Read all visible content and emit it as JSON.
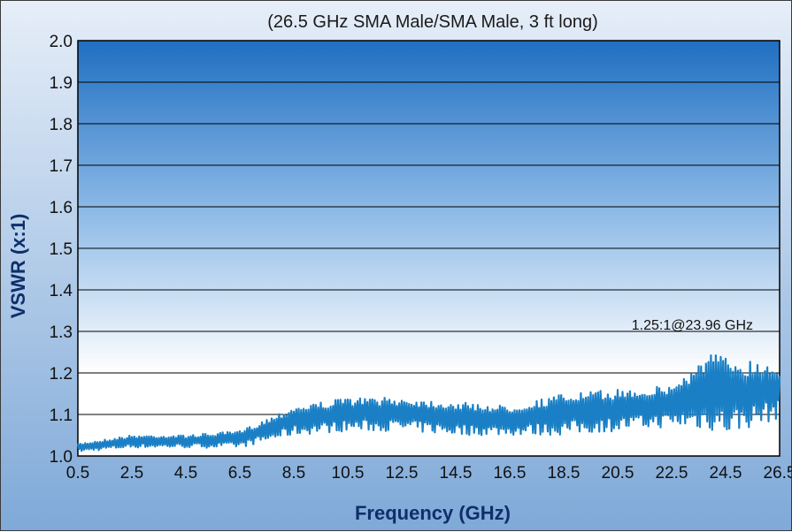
{
  "chart_data": {
    "type": "line",
    "title": "(26.5 GHz SMA Male/SMA Male, 3 ft long)",
    "xlabel": "Frequency (GHz)",
    "ylabel": "VSWR (x:1)",
    "xlim": [
      0.5,
      26.5
    ],
    "ylim": [
      1.0,
      2.0
    ],
    "xticks": [
      "0.5",
      "2.5",
      "4.5",
      "6.5",
      "8.5",
      "10.5",
      "12.5",
      "14.5",
      "16.5",
      "18.5",
      "20.5",
      "22.5",
      "24.5",
      "26.5"
    ],
    "yticks": [
      "1.0",
      "1.1",
      "1.2",
      "1.3",
      "1.4",
      "1.5",
      "1.6",
      "1.7",
      "1.8",
      "1.9",
      "2.0"
    ],
    "grid": true,
    "annotation": "1.25:1@23.96 GHz",
    "series": [
      {
        "color": "#1a7fc4",
        "envelope": {
          "x": [
            0.5,
            2.5,
            4.5,
            6.5,
            8.5,
            10.5,
            12.5,
            14.5,
            16.5,
            18.5,
            20.5,
            22.5,
            23.96,
            24.5,
            26.5
          ],
          "high": [
            1.03,
            1.05,
            1.05,
            1.06,
            1.12,
            1.14,
            1.14,
            1.13,
            1.12,
            1.15,
            1.16,
            1.17,
            1.25,
            1.24,
            1.22
          ],
          "low": [
            1.01,
            1.02,
            1.02,
            1.02,
            1.05,
            1.06,
            1.06,
            1.05,
            1.05,
            1.05,
            1.06,
            1.07,
            1.06,
            1.05,
            1.09
          ]
        },
        "points_per_ghz": 22
      }
    ]
  }
}
